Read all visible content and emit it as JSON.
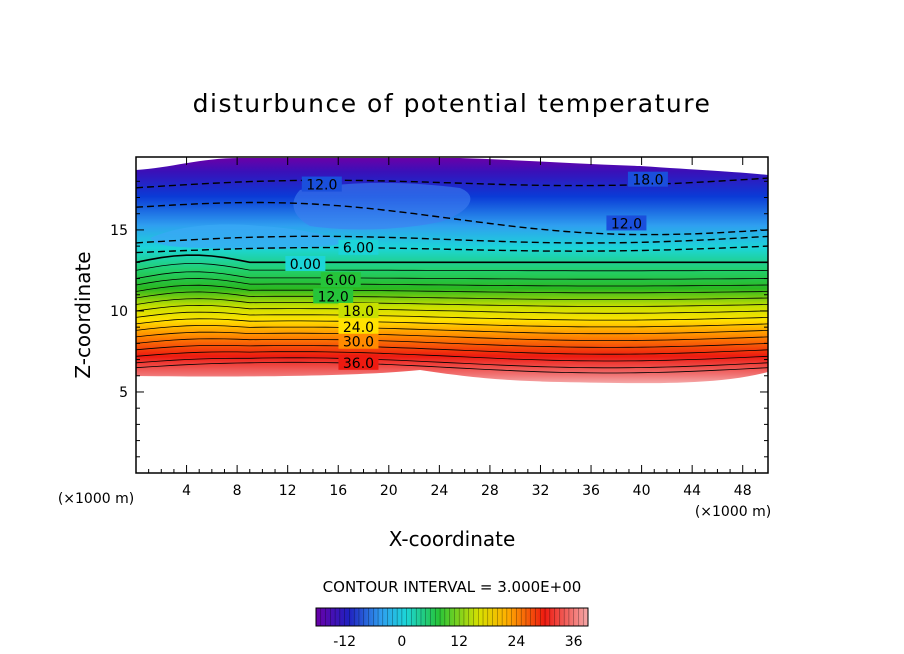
{
  "chart_data": {
    "type": "heatmap",
    "title": "disturbunce of potential temperature",
    "xlabel": "X-coordinate",
    "ylabel": "Z-coordinate",
    "x_unit": "(×1000 m)",
    "z_unit": "(×1000 m)",
    "xlim": [
      0,
      50
    ],
    "ylim": [
      0,
      19.5
    ],
    "x_ticks": [
      "4",
      "8",
      "12",
      "16",
      "20",
      "24",
      "28",
      "32",
      "36",
      "40",
      "44",
      "48"
    ],
    "y_ticks": [
      "5",
      "10",
      "15"
    ],
    "contour_interval_text": "CONTOUR INTERVAL = 3.000E+00",
    "contour_labels": [
      {
        "text": "18.0",
        "x": 40.5,
        "z": 18.1
      },
      {
        "text": "12.0",
        "x": 14.7,
        "z": 17.8
      },
      {
        "text": "12.0",
        "x": 38.8,
        "z": 15.4
      },
      {
        "text": "6.00",
        "x": 17.6,
        "z": 13.9
      },
      {
        "text": "0.00",
        "x": 13.4,
        "z": 12.9
      },
      {
        "text": "6.00",
        "x": 16.2,
        "z": 11.9
      },
      {
        "text": "12.0",
        "x": 15.6,
        "z": 10.9
      },
      {
        "text": "18.0",
        "x": 17.6,
        "z": 10.0
      },
      {
        "text": "24.0",
        "x": 17.6,
        "z": 9.0
      },
      {
        "text": "30.0",
        "x": 17.6,
        "z": 8.1
      },
      {
        "text": "36.0",
        "x": 17.6,
        "z": 6.8
      }
    ],
    "colorbar": {
      "min": -18,
      "max": 39,
      "ticks": [
        "-12",
        "0",
        "12",
        "24",
        "36"
      ],
      "tick_values": [
        -12,
        0,
        12,
        24,
        36
      ]
    },
    "colors": {
      "purple": "#6a00a8",
      "blue": "#0a2fd6",
      "cyan": "#1cd5d8",
      "green": "#26c43a",
      "yellow": "#ffe200",
      "orange": "#ff8a00",
      "red": "#ee1a10",
      "pink": "#f59a9a"
    }
  }
}
